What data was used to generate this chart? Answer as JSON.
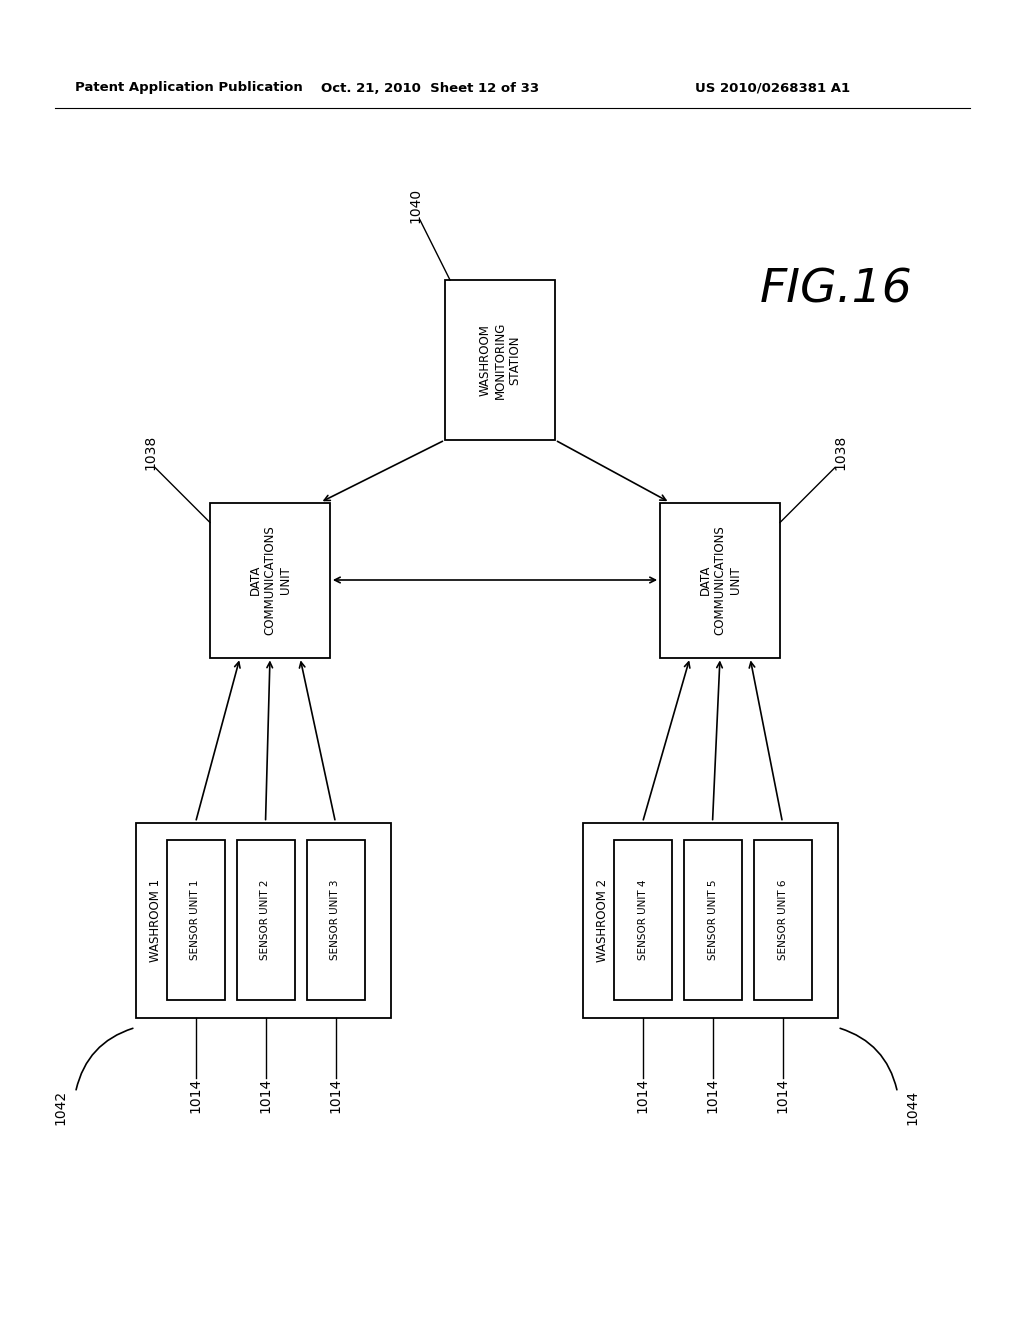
{
  "bg_color": "#ffffff",
  "header_left": "Patent Application Publication",
  "header_mid": "Oct. 21, 2010  Sheet 12 of 33",
  "header_right": "US 2010/0268381 A1",
  "fig_label": "FIG.16",
  "top_box_text": "WASHROOM\nMONITORING\nSTATION",
  "top_box_ref": "1040",
  "dcu_text": "DATA\nCOMMUNICATIONS\nUNIT",
  "dcu_ref": "1038",
  "washroom1_text": "WASHROOM 1",
  "washroom1_ref": "1042",
  "washroom2_text": "WASHROOM 2",
  "washroom2_ref": "1044",
  "sensor_labels_left": [
    "SENSOR UNIT 1",
    "SENSOR UNIT 2",
    "SENSOR UNIT 3"
  ],
  "sensor_labels_right": [
    "SENSOR UNIT 4",
    "SENSOR UNIT 5",
    "SENSOR UNIT 6"
  ],
  "sensor_ref": "1014"
}
